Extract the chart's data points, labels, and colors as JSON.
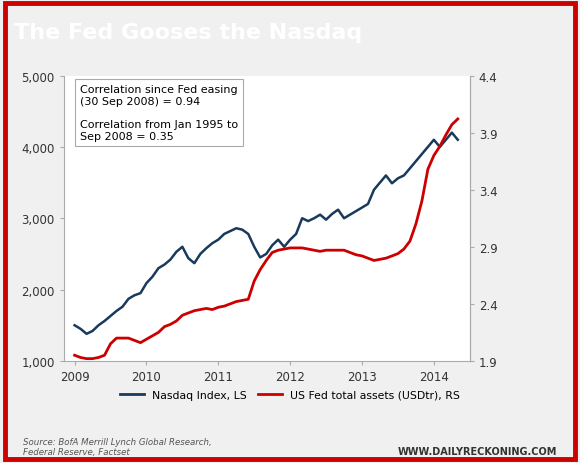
{
  "title": "The Fed Gooses the Nasdaq",
  "title_bg_color": "#1a1a1a",
  "title_text_color": "#ffffff",
  "title_fontsize": 16,
  "chart_bg_color": "#ffffff",
  "outer_bg_color": "#f0f0f0",
  "border_color": "#cc0000",
  "nasdaq_color": "#1a3a5c",
  "fed_color": "#cc0000",
  "nasdaq_label": "Nasdaq Index, LS",
  "fed_label": "US Fed total assets (USDtr), RS",
  "annotation_text": "Correlation since Fed easing\n(30 Sep 2008) = 0.94\n\nCorrelation from Jan 1995 to\nSep 2008 = 0.35",
  "source_text": "Source: BofA Merrill Lynch Global Research,\nFederal Reserve, Factset",
  "watermark": "WWW.DAILYRECKONING.COM",
  "ylim_left": [
    1000,
    5000
  ],
  "ylim_right": [
    1.9,
    4.4
  ],
  "yticks_left": [
    1000,
    2000,
    3000,
    4000,
    5000
  ],
  "yticks_right": [
    1.9,
    2.4,
    2.9,
    3.4,
    3.9,
    4.4
  ],
  "xtick_labels": [
    "2009",
    "2010",
    "2011",
    "2012",
    "2013",
    "2014"
  ],
  "xtick_positions": [
    2009,
    2010,
    2011,
    2012,
    2013,
    2014
  ],
  "xlim": [
    2008.85,
    2014.5
  ],
  "nasdaq_x": [
    2009.0,
    2009.083,
    2009.167,
    2009.25,
    2009.333,
    2009.417,
    2009.5,
    2009.583,
    2009.667,
    2009.75,
    2009.833,
    2009.917,
    2010.0,
    2010.083,
    2010.167,
    2010.25,
    2010.333,
    2010.417,
    2010.5,
    2010.583,
    2010.667,
    2010.75,
    2010.833,
    2010.917,
    2011.0,
    2011.083,
    2011.167,
    2011.25,
    2011.333,
    2011.417,
    2011.5,
    2011.583,
    2011.667,
    2011.75,
    2011.833,
    2011.917,
    2012.0,
    2012.083,
    2012.167,
    2012.25,
    2012.333,
    2012.417,
    2012.5,
    2012.583,
    2012.667,
    2012.75,
    2012.833,
    2012.917,
    2013.0,
    2013.083,
    2013.167,
    2013.25,
    2013.333,
    2013.417,
    2013.5,
    2013.583,
    2013.667,
    2013.75,
    2013.833,
    2013.917,
    2014.0,
    2014.083,
    2014.167,
    2014.25,
    2014.333
  ],
  "nasdaq_y": [
    1500,
    1450,
    1380,
    1420,
    1500,
    1560,
    1630,
    1700,
    1760,
    1870,
    1920,
    1950,
    2090,
    2180,
    2300,
    2350,
    2420,
    2530,
    2600,
    2440,
    2370,
    2500,
    2580,
    2650,
    2700,
    2780,
    2820,
    2860,
    2840,
    2780,
    2600,
    2450,
    2500,
    2620,
    2700,
    2600,
    2700,
    2780,
    3000,
    2960,
    3000,
    3050,
    2980,
    3060,
    3120,
    3000,
    3050,
    3100,
    3150,
    3200,
    3400,
    3500,
    3600,
    3490,
    3560,
    3600,
    3700,
    3800,
    3900,
    4000,
    4100,
    4000,
    4100,
    4200,
    4100
  ],
  "fed_x": [
    2009.0,
    2009.083,
    2009.167,
    2009.25,
    2009.333,
    2009.417,
    2009.5,
    2009.583,
    2009.667,
    2009.75,
    2009.833,
    2009.917,
    2010.0,
    2010.083,
    2010.167,
    2010.25,
    2010.333,
    2010.417,
    2010.5,
    2010.583,
    2010.667,
    2010.75,
    2010.833,
    2010.917,
    2011.0,
    2011.083,
    2011.167,
    2011.25,
    2011.333,
    2011.417,
    2011.5,
    2011.583,
    2011.667,
    2011.75,
    2011.833,
    2011.917,
    2012.0,
    2012.083,
    2012.167,
    2012.25,
    2012.333,
    2012.417,
    2012.5,
    2012.583,
    2012.667,
    2012.75,
    2012.833,
    2012.917,
    2013.0,
    2013.083,
    2013.167,
    2013.25,
    2013.333,
    2013.417,
    2013.5,
    2013.583,
    2013.667,
    2013.75,
    2013.833,
    2013.917,
    2014.0,
    2014.083,
    2014.167,
    2014.25,
    2014.333
  ],
  "fed_y": [
    1.95,
    1.93,
    1.92,
    1.92,
    1.93,
    1.95,
    2.05,
    2.1,
    2.1,
    2.1,
    2.08,
    2.06,
    2.09,
    2.12,
    2.15,
    2.2,
    2.22,
    2.25,
    2.3,
    2.32,
    2.34,
    2.35,
    2.36,
    2.35,
    2.37,
    2.38,
    2.4,
    2.42,
    2.43,
    2.44,
    2.6,
    2.7,
    2.78,
    2.85,
    2.87,
    2.88,
    2.89,
    2.89,
    2.89,
    2.88,
    2.87,
    2.86,
    2.87,
    2.87,
    2.87,
    2.87,
    2.85,
    2.83,
    2.82,
    2.8,
    2.78,
    2.79,
    2.8,
    2.82,
    2.84,
    2.88,
    2.95,
    3.1,
    3.3,
    3.58,
    3.7,
    3.78,
    3.88,
    3.97,
    4.02
  ]
}
